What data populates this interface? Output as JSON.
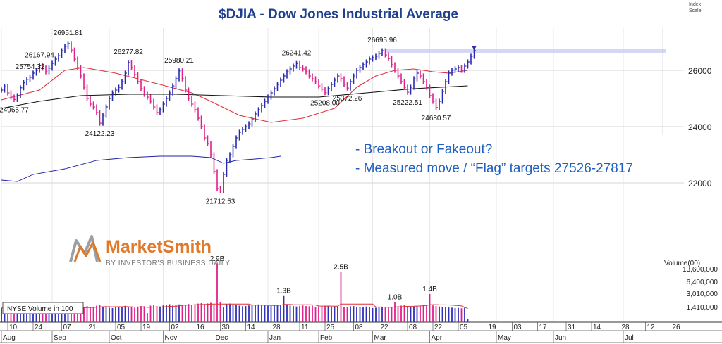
{
  "chart_data": {
    "type": "candlestick",
    "title": "$DJIA - Dow Jones Industrial Average",
    "scale_label_line1": "Index",
    "scale_label_line2": "Scale",
    "y_ticks": [
      22000,
      24000,
      26000
    ],
    "ylim": [
      21000,
      27600
    ],
    "series": [
      {
        "name": "DJIA",
        "kind": "price",
        "color_up": "#2a2ab0",
        "color_down": "#e0208a",
        "close": [
          25300,
          25420,
          25200,
          25050,
          24966,
          25100,
          25380,
          25560,
          25680,
          25754,
          25900,
          26000,
          26168,
          26080,
          25950,
          26080,
          26250,
          26400,
          26520,
          26700,
          26850,
          26952,
          26720,
          26400,
          26100,
          25800,
          25400,
          25000,
          24800,
          24700,
          24500,
          24122,
          24400,
          24700,
          25000,
          25200,
          25300,
          25400,
          25600,
          25900,
          26278,
          26100,
          25850,
          25600,
          25350,
          25150,
          25050,
          24900,
          24700,
          24500,
          24600,
          24800,
          25000,
          25200,
          25450,
          25700,
          25980,
          25700,
          25300,
          25000,
          24800,
          24600,
          24300,
          24000,
          23600,
          23400,
          23000,
          22400,
          21800,
          21713,
          22300,
          22800,
          23000,
          23300,
          23600,
          23800,
          23900,
          24000,
          24100,
          24250,
          24450,
          24600,
          24750,
          24900,
          25050,
          25200,
          25350,
          25500,
          25650,
          25800,
          25950,
          26050,
          26150,
          26242,
          26100,
          26050,
          25950,
          25800,
          25700,
          25600,
          25450,
          25330,
          25208,
          25350,
          25500,
          25650,
          25800,
          25700,
          25500,
          25372,
          25600,
          25800,
          26000,
          26100,
          26200,
          26300,
          26400,
          26450,
          26500,
          26600,
          26696,
          26550,
          26420,
          26200,
          26000,
          25800,
          25600,
          25400,
          25223,
          25400,
          25700,
          25900,
          25800,
          25600,
          25400,
          25100,
          24900,
          24681,
          24900,
          25250,
          25600,
          25900,
          26000,
          26050,
          26100,
          26000,
          26150,
          26300,
          26500,
          26700
        ],
        "annotations": [
          {
            "label": "24965.77",
            "index": 4,
            "value": 24966
          },
          {
            "label": "25754.32",
            "index": 9,
            "value": 25754
          },
          {
            "label": "26167.94",
            "index": 12,
            "value": 26168
          },
          {
            "label": "26951.81",
            "index": 21,
            "value": 26952
          },
          {
            "label": "24122.23",
            "index": 31,
            "value": 24122
          },
          {
            "label": "26277.82",
            "index": 40,
            "value": 26278
          },
          {
            "label": "25980.21",
            "index": 56,
            "value": 25980
          },
          {
            "label": "21712.53",
            "index": 69,
            "value": 21713
          },
          {
            "label": "26241.42",
            "index": 93,
            "value": 26242
          },
          {
            "label": "25208.00",
            "index": 102,
            "value": 25208
          },
          {
            "label": "25372.26",
            "index": 109,
            "value": 25372
          },
          {
            "label": "26695.96",
            "index": 120,
            "value": 26696
          },
          {
            "label": "25222.51",
            "index": 128,
            "value": 25223
          },
          {
            "label": "24680.57",
            "index": 137,
            "value": 24681
          }
        ]
      },
      {
        "name": "50-day moving average",
        "kind": "line",
        "color": "#e0303a",
        "points": [
          [
            0,
            24950
          ],
          [
            12,
            25300
          ],
          [
            20,
            26000
          ],
          [
            26,
            26100
          ],
          [
            36,
            25900
          ],
          [
            50,
            25500
          ],
          [
            60,
            25200
          ],
          [
            66,
            24900
          ],
          [
            75,
            24400
          ],
          [
            85,
            24150
          ],
          [
            95,
            24300
          ],
          [
            105,
            24650
          ],
          [
            112,
            25400
          ],
          [
            118,
            25800
          ],
          [
            124,
            26000
          ],
          [
            130,
            26050
          ],
          [
            136,
            25950
          ],
          [
            141,
            25900
          ],
          [
            147,
            26000
          ]
        ]
      },
      {
        "name": "200-day moving average",
        "kind": "line",
        "color": "#111111",
        "points": [
          [
            0,
            24650
          ],
          [
            12,
            24900
          ],
          [
            25,
            25100
          ],
          [
            40,
            25150
          ],
          [
            55,
            25150
          ],
          [
            70,
            25100
          ],
          [
            85,
            25050
          ],
          [
            100,
            25050
          ],
          [
            115,
            25200
          ],
          [
            130,
            25350
          ],
          [
            147,
            25450
          ]
        ]
      },
      {
        "name": "Relative strength line",
        "kind": "line",
        "color": "#2020a8",
        "points": [
          [
            0,
            22100
          ],
          [
            5,
            22050
          ],
          [
            10,
            22300
          ],
          [
            20,
            22500
          ],
          [
            30,
            22800
          ],
          [
            40,
            22900
          ],
          [
            50,
            22950
          ],
          [
            60,
            22950
          ],
          [
            66,
            22900
          ],
          [
            70,
            22700
          ],
          [
            74,
            22800
          ],
          [
            80,
            22850
          ],
          [
            85,
            22900
          ],
          [
            88,
            22950
          ]
        ]
      }
    ],
    "breakout_level": 26696,
    "volume": {
      "ticks": [
        "13,600,000",
        "6,400,000",
        "3,010,000",
        "1,410,000"
      ],
      "header": "Volume(00)",
      "legend": "NYSE Volume in 100",
      "values": [
        7.0,
        7.5,
        7.2,
        6.8,
        7.1,
        6.9,
        7.0,
        7.3,
        6.6,
        7.0,
        7.4,
        7.1,
        6.9,
        7.6,
        7.2,
        7.0,
        6.8,
        7.1,
        7.3,
        7.0,
        6.7,
        6.8,
        7.5,
        7.8,
        7.2,
        7.0,
        7.6,
        8.0,
        7.4,
        7.7,
        8.2,
        8.5,
        7.6,
        7.9,
        7.2,
        7.0,
        7.4,
        7.6,
        7.8,
        8.1,
        7.3,
        7.5,
        7.2,
        7.7,
        8.0,
        7.9,
        4.5,
        8.2,
        8.4,
        8.0,
        7.8,
        8.3,
        8.6,
        8.9,
        8.2,
        8.5,
        8.8,
        8.4,
        8.6,
        9.0,
        8.5,
        8.8,
        9.2,
        9.4,
        9.0,
        9.3,
        9.6,
        8.8,
        29.0,
        9.8,
        7.5,
        8.9,
        9.2,
        8.8,
        8.5,
        8.2,
        7.9,
        8.0,
        8.3,
        8.4,
        8.6,
        8.8,
        8.5,
        8.3,
        8.1,
        8.0,
        8.2,
        8.4,
        8.6,
        13.0,
        8.4,
        8.2,
        8.0,
        7.8,
        8.1,
        8.3,
        8.0,
        7.9,
        8.2,
        7.7,
        7.8,
        8.0,
        8.2,
        8.1,
        7.6,
        7.8,
        8.0,
        25.0,
        7.5,
        7.6,
        7.9,
        8.0,
        7.7,
        7.4,
        7.6,
        7.8,
        7.3,
        7.0,
        7.2,
        7.4,
        7.5,
        7.3,
        7.2,
        7.4,
        10.0,
        7.8,
        8.2,
        8.4,
        8.0,
        7.6,
        7.8,
        8.0,
        8.2,
        8.5,
        8.6,
        14.0,
        8.3,
        8.0,
        7.8,
        7.6,
        7.5,
        7.3,
        7.2,
        7.0,
        7.1,
        6.9,
        7.2,
        1.4
      ],
      "labels": [
        {
          "label": "2.9B",
          "index": 68
        },
        {
          "label": "1.3B",
          "index": 89
        },
        {
          "label": "2.5B",
          "index": 107
        },
        {
          "label": "1.0B",
          "index": 124
        },
        {
          "label": "1.4B",
          "index": 135
        }
      ]
    },
    "x_day_ticks": [
      {
        "label": "10",
        "index": 2
      },
      {
        "label": "24",
        "index": 10
      },
      {
        "label": "07",
        "index": 19
      },
      {
        "label": "21",
        "index": 27
      },
      {
        "label": "05",
        "index": 36
      },
      {
        "label": "19",
        "index": 44
      },
      {
        "label": "02",
        "index": 53
      },
      {
        "label": "16",
        "index": 61
      },
      {
        "label": "30",
        "index": 69
      },
      {
        "label": "14",
        "index": 77
      },
      {
        "label": "28",
        "index": 85
      },
      {
        "label": "11",
        "index": 94
      },
      {
        "label": "25",
        "index": 102
      },
      {
        "label": "08",
        "index": 111
      },
      {
        "label": "22",
        "index": 119
      },
      {
        "label": "08",
        "index": 128
      },
      {
        "label": "22",
        "index": 136
      },
      {
        "label": "05",
        "index": 144
      },
      {
        "label": "19",
        "index": 153
      },
      {
        "label": "03",
        "index": 161
      },
      {
        "label": "17",
        "index": 169
      },
      {
        "label": "31",
        "index": 178
      },
      {
        "label": "14",
        "index": 186
      },
      {
        "label": "28",
        "index": 195
      },
      {
        "label": "12",
        "index": 203
      },
      {
        "label": "26",
        "index": 211
      }
    ],
    "x_month_ticks": [
      {
        "label": "Aug",
        "index": 0
      },
      {
        "label": "Sep",
        "index": 16
      },
      {
        "label": "Oct",
        "index": 34
      },
      {
        "label": "Nov",
        "index": 51
      },
      {
        "label": "Dec",
        "index": 67
      },
      {
        "label": "Jan",
        "index": 84
      },
      {
        "label": "Feb",
        "index": 100
      },
      {
        "label": "Mar",
        "index": 117
      },
      {
        "label": "Apr",
        "index": 135
      },
      {
        "label": "May",
        "index": 156
      },
      {
        "label": "Jun",
        "index": 174
      },
      {
        "label": "Jul",
        "index": 196
      }
    ],
    "notes": [
      "- Breakout or Fakeout?",
      "- Measured move / “Flag” targets 27526-27817"
    ],
    "logo_main": "MarketSmith",
    "logo_sub": "BY INVESTOR'S BUSINESS DAILY"
  }
}
